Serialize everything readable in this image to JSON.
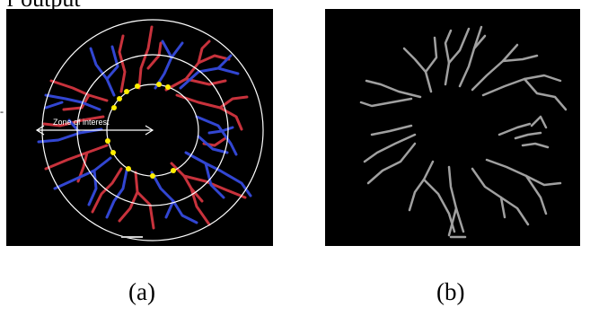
{
  "figure": {
    "top_partial_text": "r output",
    "left_mark": "-",
    "panel_a": {
      "caption": "(a)",
      "zone_label": "Zone of interest",
      "colors": {
        "background": "#000000",
        "circle": "#ffffff",
        "vessel_red": "#c8323c",
        "vessel_blue": "#3246d2",
        "marker": "#ffee00"
      }
    },
    "panel_b": {
      "caption": "(b)",
      "colors": {
        "background": "#000000",
        "vessel": "#a0a0a0"
      }
    }
  }
}
